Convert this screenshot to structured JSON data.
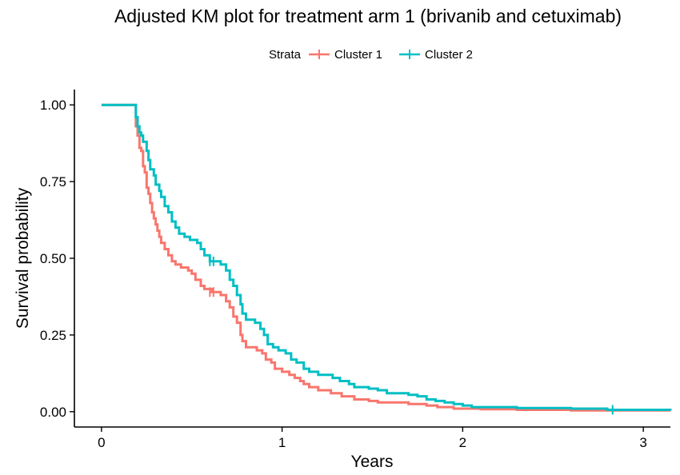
{
  "chart_data": {
    "type": "line",
    "title": "Adjusted KM plot for treatment arm 1 (brivanib and cetuximab)",
    "xlabel": "Years",
    "ylabel": "Survival probability",
    "xlim": [
      -0.15,
      3.15
    ],
    "ylim": [
      -0.05,
      1.05
    ],
    "x_ticks": [
      "0",
      "1",
      "2",
      "3"
    ],
    "x_tick_values": [
      0,
      1,
      2,
      3
    ],
    "y_ticks": [
      "0.00",
      "0.25",
      "0.50",
      "0.75",
      "1.00"
    ],
    "y_tick_values": [
      0,
      0.25,
      0.5,
      0.75,
      1.0
    ],
    "grid": false,
    "legend": {
      "title": "Strata",
      "placement": "top"
    },
    "series": [
      {
        "name": "Cluster 1",
        "color": "#F8766D",
        "step": true,
        "points": [
          [
            0,
            1.0
          ],
          [
            0.18,
            1.0
          ],
          [
            0.19,
            0.93
          ],
          [
            0.2,
            0.9
          ],
          [
            0.21,
            0.86
          ],
          [
            0.22,
            0.85
          ],
          [
            0.23,
            0.8
          ],
          [
            0.24,
            0.78
          ],
          [
            0.25,
            0.73
          ],
          [
            0.26,
            0.71
          ],
          [
            0.27,
            0.68
          ],
          [
            0.28,
            0.65
          ],
          [
            0.29,
            0.63
          ],
          [
            0.3,
            0.61
          ],
          [
            0.31,
            0.59
          ],
          [
            0.32,
            0.57
          ],
          [
            0.33,
            0.55
          ],
          [
            0.35,
            0.53
          ],
          [
            0.37,
            0.51
          ],
          [
            0.39,
            0.49
          ],
          [
            0.41,
            0.48
          ],
          [
            0.44,
            0.47
          ],
          [
            0.48,
            0.46
          ],
          [
            0.5,
            0.45
          ],
          [
            0.52,
            0.43
          ],
          [
            0.55,
            0.41
          ],
          [
            0.57,
            0.4
          ],
          [
            0.61,
            0.39
          ],
          [
            0.66,
            0.38
          ],
          [
            0.69,
            0.36
          ],
          [
            0.71,
            0.34
          ],
          [
            0.73,
            0.31
          ],
          [
            0.75,
            0.29
          ],
          [
            0.77,
            0.25
          ],
          [
            0.78,
            0.23
          ],
          [
            0.8,
            0.21
          ],
          [
            0.86,
            0.2
          ],
          [
            0.89,
            0.19
          ],
          [
            0.91,
            0.17
          ],
          [
            0.94,
            0.16
          ],
          [
            0.96,
            0.14
          ],
          [
            1.0,
            0.13
          ],
          [
            1.04,
            0.12
          ],
          [
            1.07,
            0.11
          ],
          [
            1.1,
            0.1
          ],
          [
            1.12,
            0.09
          ],
          [
            1.15,
            0.08
          ],
          [
            1.2,
            0.07
          ],
          [
            1.27,
            0.06
          ],
          [
            1.33,
            0.05
          ],
          [
            1.4,
            0.04
          ],
          [
            1.48,
            0.035
          ],
          [
            1.53,
            0.03
          ],
          [
            1.7,
            0.025
          ],
          [
            1.8,
            0.02
          ],
          [
            1.86,
            0.015
          ],
          [
            1.95,
            0.01
          ],
          [
            2.1,
            0.008
          ],
          [
            2.3,
            0.006
          ],
          [
            2.6,
            0.004
          ],
          [
            3.15,
            0.003
          ]
        ],
        "censored": [
          [
            0.6,
            0.39
          ],
          [
            0.62,
            0.39
          ]
        ]
      },
      {
        "name": "Cluster 2",
        "color": "#00BFC4",
        "step": true,
        "points": [
          [
            0,
            1.0
          ],
          [
            0.18,
            1.0
          ],
          [
            0.19,
            0.96
          ],
          [
            0.2,
            0.93
          ],
          [
            0.21,
            0.91
          ],
          [
            0.22,
            0.9
          ],
          [
            0.23,
            0.88
          ],
          [
            0.25,
            0.85
          ],
          [
            0.26,
            0.82
          ],
          [
            0.27,
            0.79
          ],
          [
            0.29,
            0.77
          ],
          [
            0.3,
            0.74
          ],
          [
            0.32,
            0.72
          ],
          [
            0.33,
            0.7
          ],
          [
            0.35,
            0.67
          ],
          [
            0.37,
            0.65
          ],
          [
            0.39,
            0.62
          ],
          [
            0.41,
            0.6
          ],
          [
            0.43,
            0.58
          ],
          [
            0.46,
            0.57
          ],
          [
            0.49,
            0.56
          ],
          [
            0.53,
            0.55
          ],
          [
            0.55,
            0.53
          ],
          [
            0.57,
            0.51
          ],
          [
            0.6,
            0.49
          ],
          [
            0.66,
            0.48
          ],
          [
            0.69,
            0.46
          ],
          [
            0.71,
            0.43
          ],
          [
            0.73,
            0.41
          ],
          [
            0.75,
            0.38
          ],
          [
            0.77,
            0.35
          ],
          [
            0.78,
            0.32
          ],
          [
            0.8,
            0.3
          ],
          [
            0.85,
            0.29
          ],
          [
            0.88,
            0.27
          ],
          [
            0.9,
            0.25
          ],
          [
            0.92,
            0.22
          ],
          [
            0.95,
            0.21
          ],
          [
            0.98,
            0.2
          ],
          [
            1.02,
            0.19
          ],
          [
            1.05,
            0.17
          ],
          [
            1.08,
            0.16
          ],
          [
            1.12,
            0.14
          ],
          [
            1.15,
            0.13
          ],
          [
            1.2,
            0.12
          ],
          [
            1.28,
            0.11
          ],
          [
            1.32,
            0.1
          ],
          [
            1.37,
            0.09
          ],
          [
            1.4,
            0.08
          ],
          [
            1.48,
            0.075
          ],
          [
            1.53,
            0.07
          ],
          [
            1.58,
            0.06
          ],
          [
            1.7,
            0.055
          ],
          [
            1.75,
            0.05
          ],
          [
            1.8,
            0.04
          ],
          [
            1.85,
            0.035
          ],
          [
            1.9,
            0.03
          ],
          [
            1.95,
            0.025
          ],
          [
            2.0,
            0.02
          ],
          [
            2.05,
            0.015
          ],
          [
            2.3,
            0.012
          ],
          [
            2.6,
            0.01
          ],
          [
            2.8,
            0.006
          ],
          [
            3.15,
            0.005
          ]
        ],
        "censored": [
          [
            0.6,
            0.49
          ],
          [
            0.62,
            0.49
          ],
          [
            2.83,
            0.006
          ]
        ]
      }
    ]
  }
}
